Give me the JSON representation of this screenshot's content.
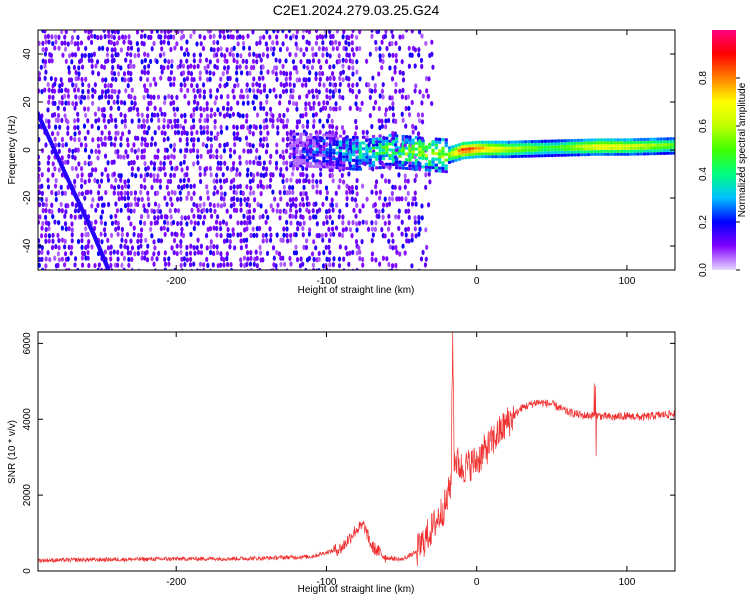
{
  "title": "C2E1.2024.279.03.25.G24",
  "chart_data": [
    {
      "type": "heatmap",
      "xlabel": "Height of straight line (km)",
      "ylabel": "Frequency (Hz)",
      "xlim": [
        -292,
        132
      ],
      "ylim": [
        -50,
        50
      ],
      "xticks": [
        -200,
        -100,
        0,
        100
      ],
      "yticks": [
        -40,
        -20,
        0,
        20,
        40
      ],
      "colorbar": {
        "label": "Normalized spectral amplitude",
        "range": [
          0,
          1
        ],
        "ticks": [
          0.0,
          0.2,
          0.4,
          0.6,
          0.8
        ],
        "tick_labels": [
          "0.0",
          "0.2",
          "0.4",
          "0.6",
          "0.8"
        ],
        "colormap": [
          "#e8d8ff",
          "#8000ff",
          "#0000ff",
          "#00c0ff",
          "#00ff80",
          "#40ff00",
          "#c0ff00",
          "#ffff00",
          "#ff8000",
          "#ff0000",
          "#ff0080"
        ]
      },
      "features": {
        "central_ridge": [
          [
            -120,
            0.5,
            0.12
          ],
          [
            -100,
            0,
            0.25
          ],
          [
            -80,
            -1,
            0.38
          ],
          [
            -60,
            0,
            0.45
          ],
          [
            -40,
            -1,
            0.55
          ],
          [
            -20,
            -2,
            0.6
          ],
          [
            -10,
            0,
            0.95
          ],
          [
            0,
            0.5,
            0.85
          ],
          [
            20,
            0.5,
            0.65
          ],
          [
            50,
            1,
            0.5
          ],
          [
            80,
            1.5,
            0.75
          ],
          [
            100,
            1.5,
            0.7
          ],
          [
            132,
            2,
            0.55
          ]
        ],
        "diagonal_streak": [
          [
            -292,
            15
          ],
          [
            -270,
            -15
          ],
          [
            -255,
            -35
          ],
          [
            -245,
            -50
          ]
        ],
        "noise_region_km": [
          -292,
          -40
        ]
      }
    },
    {
      "type": "line",
      "xlabel": "Height of straight line (km)",
      "ylabel": "SNR (10 * v/v)",
      "xlim": [
        -292,
        132
      ],
      "ylim": [
        0,
        6300
      ],
      "xticks": [
        -200,
        -100,
        0,
        100
      ],
      "yticks": [
        0,
        2000,
        4000,
        6000
      ],
      "color": "#f03030",
      "envelope": {
        "x": [
          -292,
          -250,
          -200,
          -150,
          -110,
          -90,
          -80,
          -75,
          -70,
          -60,
          -50,
          -40,
          -30,
          -20,
          -17,
          -16,
          -15,
          -10,
          0,
          10,
          20,
          30,
          40,
          50,
          60,
          70,
          80,
          90,
          100,
          110,
          120,
          132
        ],
        "y": [
          280,
          300,
          320,
          330,
          380,
          600,
          1100,
          1200,
          650,
          350,
          300,
          500,
          1100,
          1800,
          2400,
          6300,
          3000,
          2700,
          2900,
          3400,
          3900,
          4300,
          4450,
          4400,
          4200,
          4100,
          4100,
          4050,
          4100,
          4050,
          4100,
          4150
        ]
      }
    }
  ]
}
